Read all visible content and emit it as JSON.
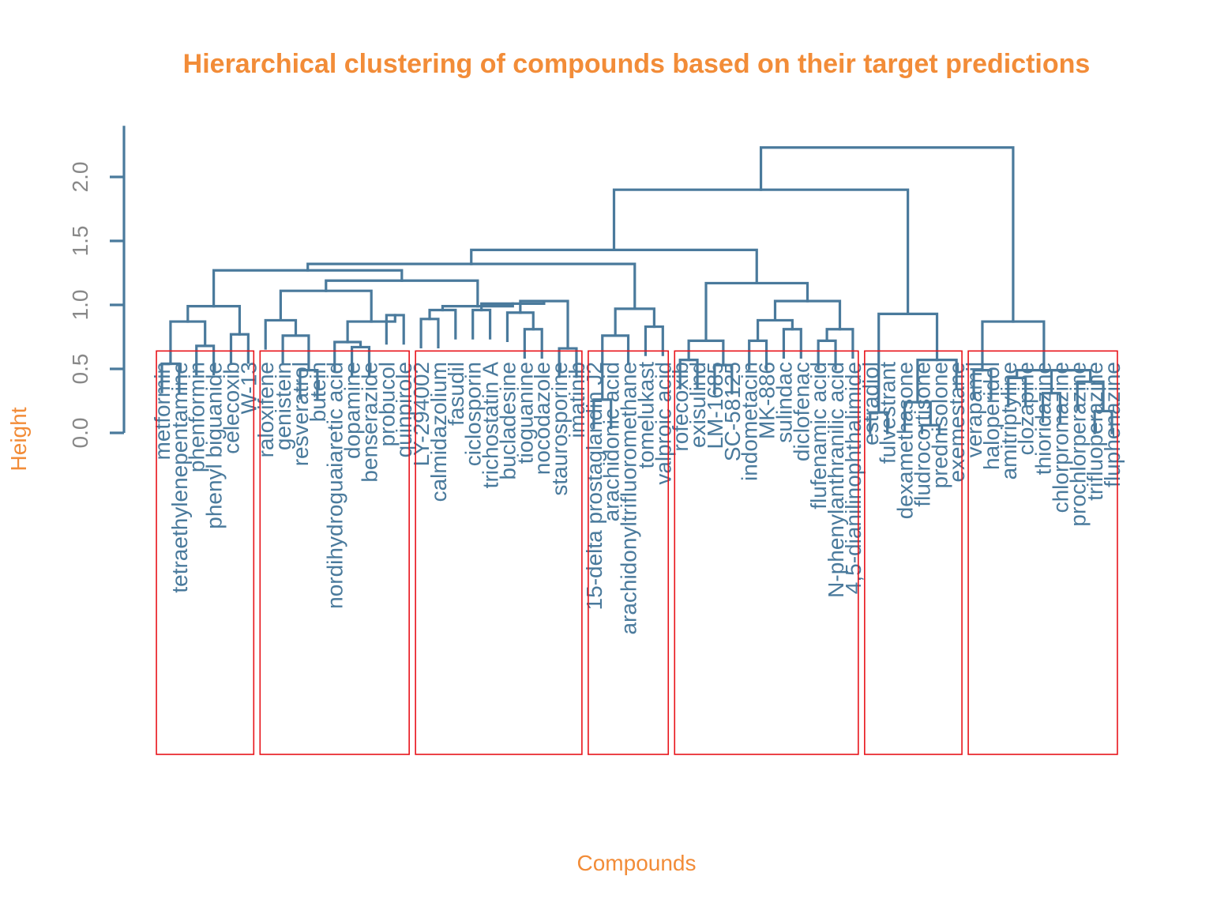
{
  "chart_data": {
    "type": "dendrogram",
    "title": "Hierarchical clustering of compounds based on their target predictions",
    "xlabel": "Compounds",
    "ylabel": "Height",
    "ylim": [
      0,
      2.4
    ],
    "yticks": [
      "0.0",
      "0.5",
      "1.0",
      "1.5",
      "2.0"
    ],
    "ytick_values": [
      0.0,
      0.5,
      1.0,
      1.5,
      2.0
    ],
    "colors": {
      "branch": "#4A7A9C",
      "title": "#F28C38",
      "box": "#E8141B",
      "tick": "#888888"
    },
    "leaves": [
      "metformin",
      "tetraethylenepentamine",
      "phenformin",
      "phenyl biguanide",
      "celecoxib",
      "W-13",
      "raloxifene",
      "genistein",
      "resveratrol",
      "butein",
      "nordihydroguaiaretic acid",
      "dopamine",
      "benserazide",
      "probucol",
      "quinpirole",
      "LY-294002",
      "calmidazolium",
      "fasudil",
      "ciclosporin",
      "trichostatin A",
      "bucladesine",
      "tioguanine",
      "nocodazole",
      "staurosporine",
      "imatinib",
      "15-delta prostaglandin J2",
      "arachidonic acid",
      "arachidonyltrifluoromethane",
      "tomelukast",
      "valproic acid",
      "rofecoxib",
      "exisulind",
      "LM-1685",
      "SC-58125",
      "indometacin",
      "MK-886",
      "sulindac",
      "diclofenac",
      "flufenamic acid",
      "N-phenylanthranilic acid",
      "4,5-dianilinophthalimide",
      "estradiol",
      "fulvestrant",
      "dexamethasone",
      "fludrocortisone",
      "prednisolone",
      "exemestane",
      "verapamil",
      "haloperidol",
      "amitriptyline",
      "clozapine",
      "thioridazine",
      "chlorpromazine",
      "prochlorperazine",
      "trifluoperazine",
      "fluphenazine"
    ],
    "merges": [
      {
        "a": 0,
        "b": 1,
        "height": 0.54
      },
      {
        "a": 2,
        "b": 3,
        "height": 0.68
      },
      {
        "a": 4,
        "b": 5,
        "height": 0.77
      },
      {
        "a": "m0",
        "b": "m1",
        "height": 0.87
      },
      {
        "a": "m3",
        "b": "m2",
        "height": 0.99
      },
      {
        "a": 8,
        "b": 9,
        "height": 0.49
      },
      {
        "a": 7,
        "b": "m5",
        "height": 0.76
      },
      {
        "a": 6,
        "b": "m6",
        "height": 0.88
      },
      {
        "a": 11,
        "b": 12,
        "height": 0.67
      },
      {
        "a": 10,
        "b": "m8",
        "height": 0.71
      },
      {
        "a": 13,
        "b": 14,
        "height": 0.92
      },
      {
        "a": "m9",
        "b": "m10",
        "height": 0.87
      },
      {
        "a": "m7",
        "b": "m11",
        "height": 1.11
      },
      {
        "a": 15,
        "b": 16,
        "height": 0.89
      },
      {
        "a": "m13",
        "b": 17,
        "height": 0.96
      },
      {
        "a": 18,
        "b": 19,
        "height": 0.96
      },
      {
        "a": 21,
        "b": 22,
        "height": 0.81
      },
      {
        "a": 20,
        "b": "m16",
        "height": 0.94
      },
      {
        "a": 23,
        "b": 24,
        "height": 0.66
      },
      {
        "a": "m17",
        "b": "m18",
        "height": 1.03
      },
      {
        "a": "m15",
        "b": "m19",
        "height": 1.01
      },
      {
        "a": "m14",
        "b": "m20",
        "height": 0.99
      },
      {
        "a": "m12",
        "b": "m21",
        "height": 1.19
      },
      {
        "a": "m4",
        "b": "m22",
        "height": 1.27
      },
      {
        "a": 25,
        "b": 26,
        "height": 0.26
      },
      {
        "a": "m24",
        "b": 27,
        "height": 0.76
      },
      {
        "a": 28,
        "b": 29,
        "height": 0.83
      },
      {
        "a": "m25",
        "b": "m26",
        "height": 0.97
      },
      {
        "a": "m23",
        "b": "m27",
        "height": 1.32
      },
      {
        "a": 30,
        "b": 31,
        "height": 0.57
      },
      {
        "a": 32,
        "b": 33,
        "height": 0.53
      },
      {
        "a": "m29",
        "b": "m30",
        "height": 0.72
      },
      {
        "a": 34,
        "b": 35,
        "height": 0.72
      },
      {
        "a": 36,
        "b": 37,
        "height": 0.81
      },
      {
        "a": "m32",
        "b": "m33",
        "height": 0.88
      },
      {
        "a": 38,
        "b": 39,
        "height": 0.72
      },
      {
        "a": "m35",
        "b": 40,
        "height": 0.81
      },
      {
        "a": "m34",
        "b": "m36",
        "height": 1.03
      },
      {
        "a": "m31",
        "b": "m37",
        "height": 1.17
      },
      {
        "a": "m28",
        "b": "m38",
        "height": 1.43
      },
      {
        "a": 41,
        "b": 42,
        "height": 0.16
      },
      {
        "a": 44,
        "b": 45,
        "height": 0.06
      },
      {
        "a": 43,
        "b": "m41",
        "height": 0.24
      },
      {
        "a": "m42",
        "b": 46,
        "height": 0.57
      },
      {
        "a": "m40",
        "b": "m43",
        "height": 0.93
      },
      {
        "a": "m39",
        "b": "m44",
        "height": 1.9
      },
      {
        "a": 47,
        "b": 48,
        "height": 0.49
      },
      {
        "a": 49,
        "b": 50,
        "height": 0.43
      },
      {
        "a": 51,
        "b": 52,
        "height": 0.31
      },
      {
        "a": 54,
        "b": 55,
        "height": 0.17
      },
      {
        "a": 53,
        "b": "m49",
        "height": 0.4
      },
      {
        "a": "m48",
        "b": "m50",
        "height": 0.49
      },
      {
        "a": "m47",
        "b": "m51",
        "height": 0.49
      },
      {
        "a": "m46",
        "b": "m52",
        "height": 0.87
      },
      {
        "a": "m45",
        "b": "m53",
        "height": 2.23
      }
    ],
    "cluster_boxes": [
      {
        "first": 0,
        "last": 5
      },
      {
        "first": 6,
        "last": 14
      },
      {
        "first": 15,
        "last": 24
      },
      {
        "first": 25,
        "last": 29
      },
      {
        "first": 30,
        "last": 40
      },
      {
        "first": 41,
        "last": 46
      },
      {
        "first": 47,
        "last": 55
      }
    ],
    "box_top_height": 0.64,
    "grid": false
  }
}
